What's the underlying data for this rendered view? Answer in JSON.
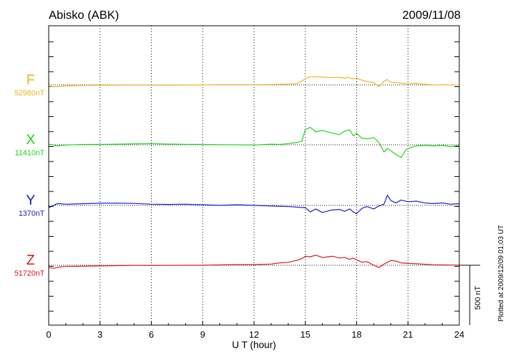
{
  "header": {
    "station": "Abisko (ABK)",
    "date": "2009/11/08"
  },
  "plotted_note": "Plotted at 2009/12/09 01:03 UT",
  "scale_label": "500 nT",
  "chart_data": {
    "type": "line",
    "xlabel": "U T (hour)",
    "xlim": [
      0,
      24
    ],
    "xticks": [
      "0",
      "3",
      "6",
      "9",
      "12",
      "15",
      "18",
      "21",
      "24"
    ],
    "scale_bar_nT": 500,
    "grid": "vertical dotted every 3 hours",
    "series": [
      {
        "name": "F",
        "baseline_label": "52980nT",
        "color": "#f0b21e",
        "x": [
          0,
          0.3,
          0.6,
          1,
          1.5,
          2,
          3,
          4,
          5,
          6,
          7,
          8,
          9,
          10,
          11,
          12,
          13,
          13.5,
          14,
          14.5,
          15,
          15.2,
          15.5,
          16,
          16.5,
          17,
          17.3,
          17.5,
          17.8,
          18,
          18.3,
          18.6,
          19,
          19.3,
          19.6,
          19.8,
          20,
          20.3,
          20.6,
          21,
          21.5,
          22,
          22.5,
          23,
          23.5,
          24
        ],
        "y": [
          -10,
          -15,
          -12,
          -8,
          -6,
          -4,
          -3,
          -2,
          -1,
          -2,
          -2,
          -1,
          0,
          2,
          2,
          1,
          3,
          5,
          7,
          10,
          50,
          65,
          68,
          66,
          62,
          63,
          58,
          62,
          50,
          55,
          40,
          28,
          20,
          -15,
          30,
          45,
          22,
          18,
          15,
          10,
          12,
          5,
          0,
          2,
          -1,
          0
        ]
      },
      {
        "name": "X",
        "baseline_label": "11410nT",
        "color": "#19d41c",
        "x": [
          0,
          0.5,
          1,
          2,
          3,
          4,
          5,
          6,
          7,
          8,
          9,
          10,
          11,
          12,
          13,
          13.5,
          14,
          14.5,
          14.8,
          15,
          15.3,
          15.6,
          16,
          16.5,
          17,
          17.3,
          17.6,
          17.8,
          18,
          18.3,
          18.6,
          19,
          19.3,
          19.6,
          19.8,
          20,
          20.3,
          20.6,
          20.9,
          21.2,
          21.5,
          22,
          22.5,
          23,
          23.5,
          24
        ],
        "y": [
          5,
          -10,
          -2,
          3,
          3,
          5,
          8,
          10,
          6,
          4,
          3,
          1,
          0,
          -2,
          5,
          3,
          10,
          20,
          30,
          130,
          145,
          110,
          120,
          100,
          85,
          115,
          125,
          75,
          95,
          55,
          50,
          60,
          20,
          -60,
          -30,
          -50,
          -80,
          -105,
          -40,
          -20,
          -10,
          -5,
          -10,
          -5,
          -15,
          -5
        ]
      },
      {
        "name": "Y",
        "baseline_label": "1370nT",
        "color": "#1a1ad0",
        "x": [
          0,
          0.5,
          1,
          2,
          3,
          4,
          5,
          6,
          7,
          8,
          9,
          10,
          11,
          12,
          13,
          14,
          15,
          15.3,
          15.6,
          16,
          16.5,
          17,
          17.3,
          17.6,
          17.8,
          18,
          18.3,
          18.6,
          19,
          19.3,
          19.6,
          19.8,
          20,
          20.3,
          20.6,
          21,
          21.5,
          22,
          22.5,
          23,
          23.5,
          24
        ],
        "y": [
          -20,
          15,
          10,
          14,
          18,
          18,
          16,
          10,
          8,
          10,
          5,
          0,
          5,
          0,
          -5,
          -10,
          -20,
          -55,
          -30,
          -60,
          -40,
          -35,
          -50,
          -30,
          -55,
          -70,
          -25,
          -10,
          -30,
          -5,
          10,
          85,
          40,
          20,
          45,
          30,
          35,
          20,
          15,
          20,
          10,
          15
        ]
      },
      {
        "name": "Z",
        "baseline_label": "51720nT",
        "color": "#dd1616",
        "x": [
          0,
          0.3,
          0.6,
          1,
          2,
          3,
          4,
          5,
          6,
          7,
          8,
          9,
          10,
          11,
          12,
          13,
          13.5,
          14,
          14.5,
          14.8,
          15,
          15.3,
          15.6,
          16,
          16.3,
          16.6,
          17,
          17.3,
          17.6,
          17.8,
          18,
          18.3,
          18.6,
          19,
          19.3,
          19.6,
          20,
          20.3,
          20.6,
          21,
          21.5,
          22,
          22.5,
          23,
          23.5,
          24
        ],
        "y": [
          -20,
          -25,
          -15,
          -10,
          -8,
          -6,
          -3,
          -1,
          -2,
          -1,
          0,
          0,
          3,
          5,
          5,
          10,
          20,
          25,
          40,
          55,
          75,
          70,
          85,
          65,
          70,
          75,
          60,
          65,
          50,
          60,
          45,
          25,
          30,
          0,
          -20,
          10,
          40,
          35,
          20,
          15,
          12,
          8,
          4,
          3,
          2,
          1
        ]
      }
    ]
  }
}
